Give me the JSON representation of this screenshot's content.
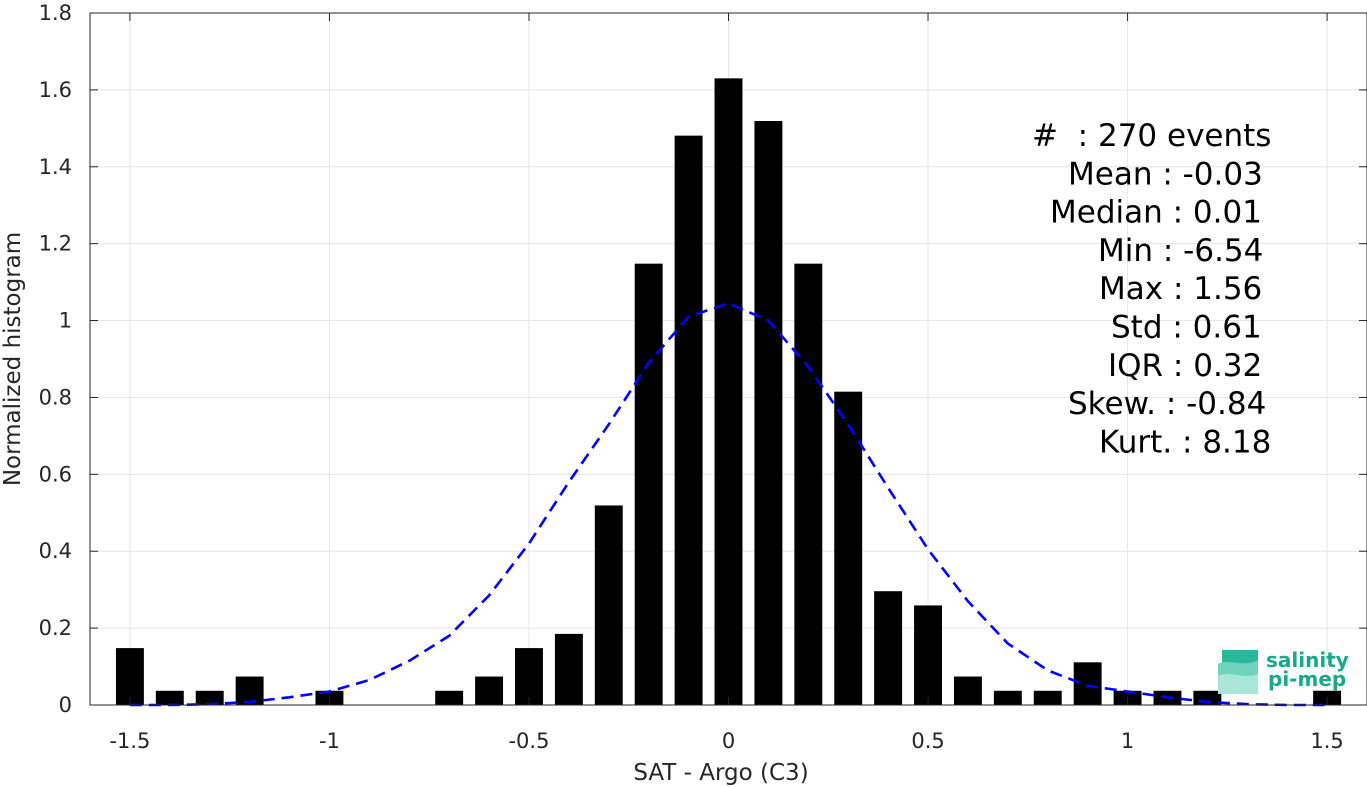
{
  "chart_data": {
    "type": "bar",
    "xlabel": "SAT - Argo (C3)",
    "ylabel": "Normalized histogram",
    "xlim": [
      -1.6,
      1.6
    ],
    "ylim": [
      0,
      1.8
    ],
    "xticks": [
      -1.5,
      -1,
      -0.5,
      0,
      0.5,
      1,
      1.5
    ],
    "xtick_labels": [
      "-1.5",
      "-1",
      "-0.5",
      "0",
      "0.5",
      "1",
      "1.5"
    ],
    "yticks": [
      0,
      0.2,
      0.4,
      0.6,
      0.8,
      1,
      1.2,
      1.4,
      1.6,
      1.8
    ],
    "ytick_labels": [
      "0",
      "0.2",
      "0.4",
      "0.6",
      "0.8",
      "1",
      "1.2",
      "1.4",
      "1.6",
      "1.8"
    ],
    "grid": true,
    "bar_color": "#000000",
    "bar_width": 0.07,
    "bars": {
      "x": [
        -1.5,
        -1.4,
        -1.3,
        -1.2,
        -1.1,
        -1.0,
        -0.9,
        -0.8,
        -0.7,
        -0.6,
        -0.5,
        -0.4,
        -0.3,
        -0.2,
        -0.1,
        0.0,
        0.1,
        0.2,
        0.3,
        0.4,
        0.5,
        0.6,
        0.7,
        0.8,
        0.9,
        1.0,
        1.1,
        1.2,
        1.3,
        1.4,
        1.5
      ],
      "values": [
        0.148,
        0.037,
        0.037,
        0.074,
        0,
        0.037,
        0,
        0,
        0.037,
        0.074,
        0.148,
        0.185,
        0.519,
        1.148,
        1.481,
        1.63,
        1.519,
        1.148,
        0.815,
        0.296,
        0.259,
        0.074,
        0.037,
        0.037,
        0.111,
        0.037,
        0.037,
        0.037,
        0,
        0,
        0.037
      ]
    },
    "fit_curve": {
      "style": "dashed",
      "color": "#0000ff",
      "x": [
        -1.5,
        -1.4,
        -1.3,
        -1.2,
        -1.1,
        -1.0,
        -0.9,
        -0.8,
        -0.7,
        -0.6,
        -0.5,
        -0.4,
        -0.3,
        -0.2,
        -0.1,
        0.0,
        0.1,
        0.2,
        0.3,
        0.4,
        0.5,
        0.6,
        0.7,
        0.8,
        0.9,
        1.0,
        1.1,
        1.2,
        1.3,
        1.4,
        1.5
      ],
      "y": [
        0.0,
        0.0,
        0.002,
        0.008,
        0.02,
        0.035,
        0.065,
        0.115,
        0.18,
        0.285,
        0.42,
        0.58,
        0.73,
        0.89,
        1.01,
        1.045,
        1.0,
        0.88,
        0.73,
        0.565,
        0.405,
        0.27,
        0.16,
        0.09,
        0.05,
        0.035,
        0.02,
        0.008,
        0.002,
        0.0,
        0.0
      ]
    },
    "annotations": [
      "#  : 270 events",
      "Mean : -0.03",
      "Median : 0.01",
      "Min : -6.54",
      "Max : 1.56",
      "Std : 0.61",
      "IQR : 0.32",
      "Skew. : -0.84",
      "Kurt. : 8.18"
    ]
  },
  "logo": {
    "line1": "salinity",
    "line2": "pi-mep"
  }
}
